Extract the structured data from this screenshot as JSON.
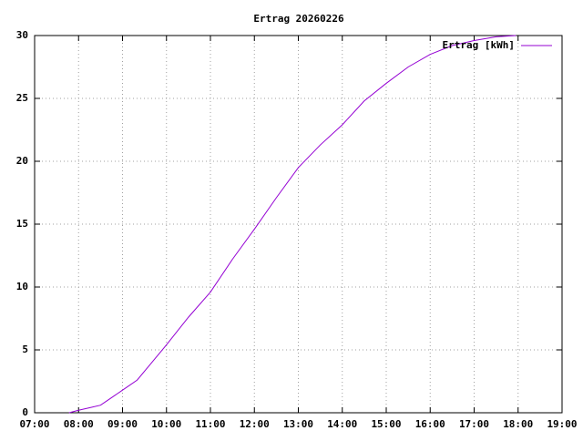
{
  "chart_data": {
    "type": "line",
    "title": "Ertrag 20260226",
    "x": [
      "07:47",
      "08:00",
      "08:15",
      "08:30",
      "08:40",
      "09:00",
      "09:20",
      "09:40",
      "10:00",
      "10:30",
      "11:00",
      "11:30",
      "12:00",
      "12:30",
      "13:00",
      "13:30",
      "14:00",
      "14:30",
      "15:00",
      "15:30",
      "16:00",
      "16:30",
      "17:00",
      "17:30",
      "17:57"
    ],
    "series": [
      {
        "name": "Ertrag [kWh]",
        "color": "#9400d3",
        "values": [
          0,
          0.2,
          0.4,
          0.6,
          1.0,
          1.8,
          2.6,
          4.0,
          5.4,
          7.6,
          9.6,
          12.2,
          14.6,
          17.1,
          19.5,
          21.3,
          22.9,
          24.8,
          26.2,
          27.5,
          28.5,
          29.2,
          29.6,
          29.9,
          30
        ]
      }
    ],
    "xlim": [
      "07:00",
      "19:00"
    ],
    "xticks": [
      "07:00",
      "08:00",
      "09:00",
      "10:00",
      "11:00",
      "12:00",
      "13:00",
      "14:00",
      "15:00",
      "16:00",
      "17:00",
      "18:00",
      "19:00"
    ],
    "ylim": [
      0,
      30
    ],
    "yticks": [
      0,
      5,
      10,
      15,
      20,
      25,
      30
    ],
    "grid": true,
    "legend": "top-right"
  }
}
